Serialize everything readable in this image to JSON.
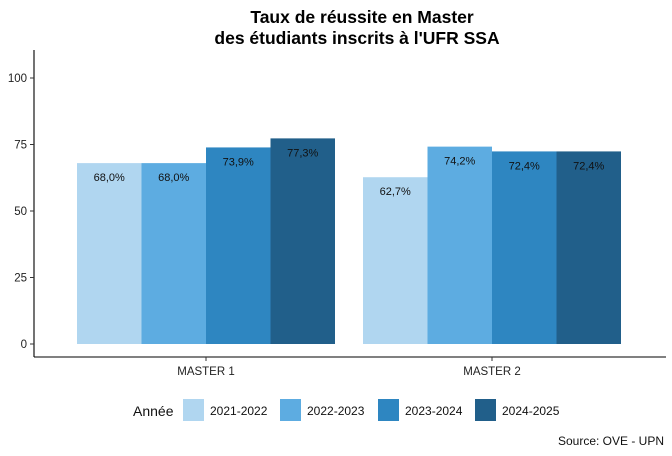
{
  "chart_data": {
    "type": "bar",
    "title": "Taux de réussite en Master",
    "subtitle": "des étudiants inscrits à l'UFR SSA",
    "xlabel": "",
    "ylabel": "",
    "ylim": [
      0,
      110
    ],
    "yticks": [
      "0",
      "25",
      "50",
      "75",
      "100"
    ],
    "ytick_values": [
      0,
      25,
      50,
      75,
      100
    ],
    "categories": [
      "MASTER 1",
      "MASTER 2"
    ],
    "series": [
      {
        "name": "2021-2022",
        "color": "#B0D6F0",
        "values": [
          68.0,
          62.7
        ],
        "labels": [
          "68,0%",
          "62,7%"
        ]
      },
      {
        "name": "2022-2023",
        "color": "#5DACE1",
        "values": [
          68.0,
          74.2
        ],
        "labels": [
          "68,0%",
          "74,2%"
        ]
      },
      {
        "name": "2023-2024",
        "color": "#2E86C1",
        "values": [
          73.9,
          72.4
        ],
        "labels": [
          "73,9%",
          "72,4%"
        ]
      },
      {
        "name": "2024-2025",
        "color": "#215F8A",
        "values": [
          77.3,
          72.4
        ],
        "labels": [
          "77,3%",
          "72,4%"
        ]
      }
    ],
    "legend_title": "Année",
    "legend_position": "bottom",
    "grid": false,
    "caption": "Source: OVE - UPN"
  }
}
